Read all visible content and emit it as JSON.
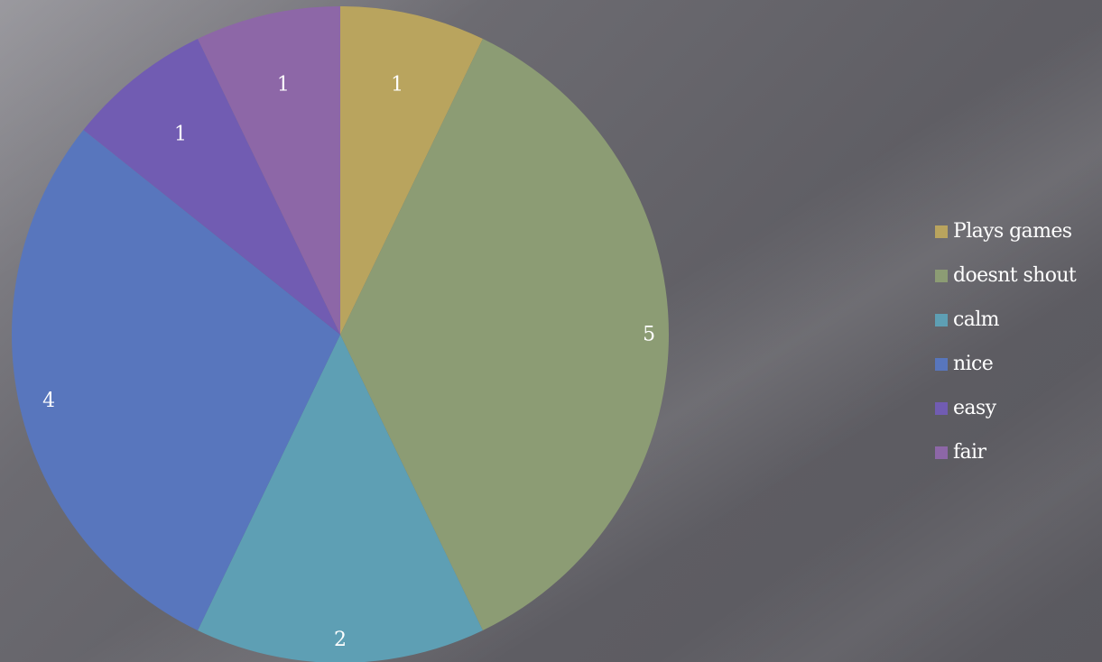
{
  "chart_data": {
    "type": "pie",
    "categories": [
      "Plays games",
      "doesnt shout",
      "calm",
      "nice",
      "easy",
      "fair"
    ],
    "values": [
      1,
      5,
      2,
      4,
      1,
      1
    ],
    "data_labels": [
      "1",
      "5",
      "2",
      "4",
      "1",
      "1"
    ],
    "colors": [
      "#b9a45e",
      "#8c9c74",
      "#5e9fb4",
      "#5876bd",
      "#715cb2",
      "#8d67a7"
    ],
    "start": "12 o'clock",
    "direction": "clockwise",
    "legend_position": "right"
  }
}
